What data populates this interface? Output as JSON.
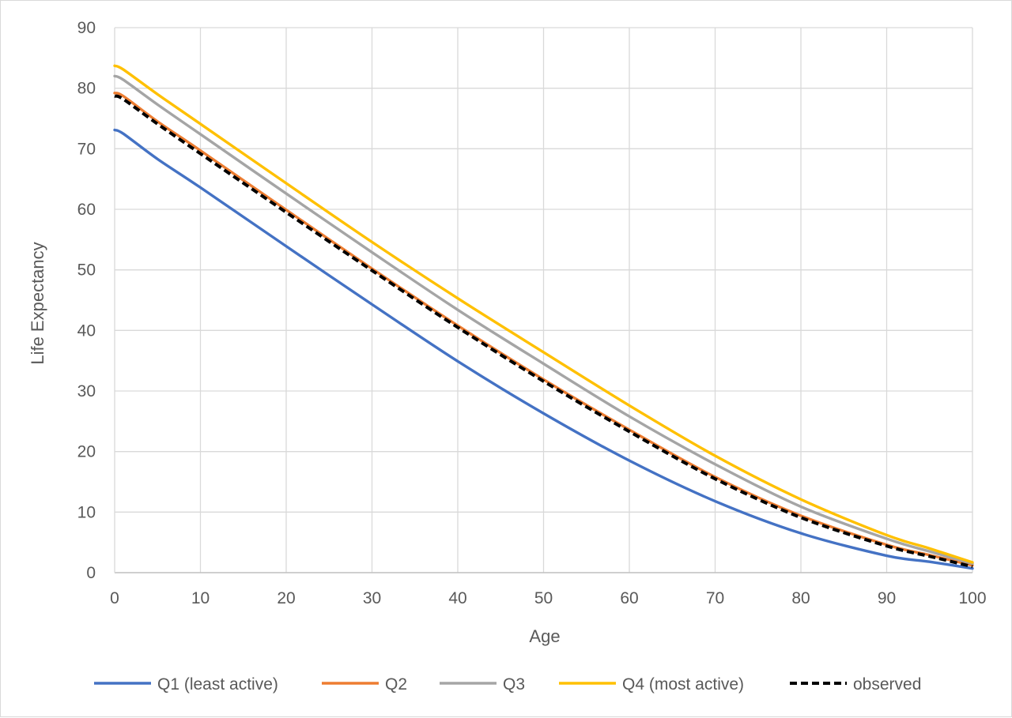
{
  "chart_data": {
    "type": "line",
    "title": "",
    "xlabel": "Age",
    "ylabel": "Life Expectancy",
    "xlim": [
      0,
      100
    ],
    "ylim": [
      0,
      90
    ],
    "x_ticks": [
      0,
      10,
      20,
      30,
      40,
      50,
      60,
      70,
      80,
      90,
      100
    ],
    "y_ticks": [
      0,
      10,
      20,
      30,
      40,
      50,
      60,
      70,
      80,
      90
    ],
    "grid": true,
    "legend_position": "bottom",
    "x": [
      0,
      1,
      5,
      10,
      20,
      30,
      40,
      50,
      60,
      70,
      80,
      90,
      95,
      100
    ],
    "series": [
      {
        "name": "Q1 (least active)",
        "color": "#4472C4",
        "dash": "solid",
        "values": [
          73.1,
          72.5,
          68.3,
          63.6,
          53.9,
          44.3,
          34.9,
          26.3,
          18.5,
          11.8,
          6.5,
          2.8,
          1.8,
          0.7
        ]
      },
      {
        "name": "Q2",
        "color": "#ED7D31",
        "dash": "solid",
        "values": [
          79.2,
          78.7,
          74.5,
          69.7,
          59.9,
          50.2,
          40.8,
          31.9,
          23.6,
          15.8,
          9.4,
          4.6,
          2.9,
          1.2
        ]
      },
      {
        "name": "Q3",
        "color": "#A5A5A5",
        "dash": "solid",
        "values": [
          82.0,
          81.4,
          77.3,
          72.4,
          62.6,
          52.9,
          43.4,
          34.5,
          25.8,
          17.9,
          10.9,
          5.6,
          3.5,
          1.5
        ]
      },
      {
        "name": "Q4 (most active)",
        "color": "#FFC000",
        "dash": "solid",
        "values": [
          83.7,
          83.1,
          79.0,
          74.1,
          64.3,
          54.6,
          45.3,
          36.4,
          27.6,
          19.3,
          12.1,
          6.2,
          4.0,
          1.7
        ]
      },
      {
        "name": "observed",
        "color": "#000000",
        "dash": "dashed",
        "values": [
          78.7,
          78.2,
          74.1,
          69.2,
          59.5,
          49.9,
          40.5,
          31.6,
          23.3,
          15.5,
          9.1,
          4.4,
          2.7,
          1.0
        ]
      }
    ]
  }
}
